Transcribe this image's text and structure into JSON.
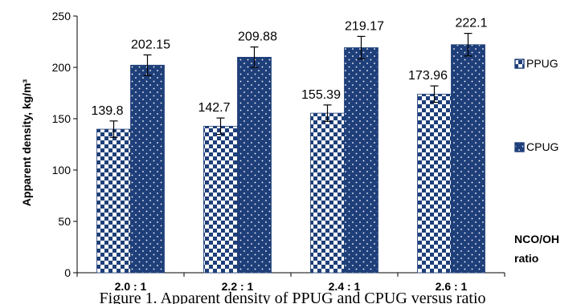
{
  "chart_data": {
    "type": "bar",
    "categories": [
      "2.0 : 1",
      "2.2 : 1",
      "2.4 : 1",
      "2.6 : 1"
    ],
    "series": [
      {
        "name": "PPUG",
        "values": [
          139.8,
          142.7,
          155.39,
          173.96
        ],
        "labels": [
          "139.8",
          "142.7",
          "155.39",
          "173.96"
        ],
        "errors": [
          8,
          8,
          8,
          8
        ],
        "color": "#1f3f7a",
        "pattern": "checker"
      },
      {
        "name": "CPUG",
        "values": [
          202.15,
          209.88,
          219.17,
          222.1
        ],
        "labels": [
          "202.15",
          "209.88",
          "219.17",
          "222.1"
        ],
        "errors": [
          10,
          10,
          11,
          11
        ],
        "color": "#1f3f7a",
        "pattern": "dots"
      }
    ],
    "ylabel": "Apparent density,  kg/m³",
    "xlabel_line1": "NCO/OH",
    "xlabel_line2": "ratio",
    "ylim": [
      0,
      250
    ],
    "yticks": [
      0,
      50,
      100,
      150,
      200,
      250
    ],
    "grid": false,
    "legend_position": "right",
    "caption": "Figure 1. Apparent density of PPUG and CPUG versus ratio"
  }
}
